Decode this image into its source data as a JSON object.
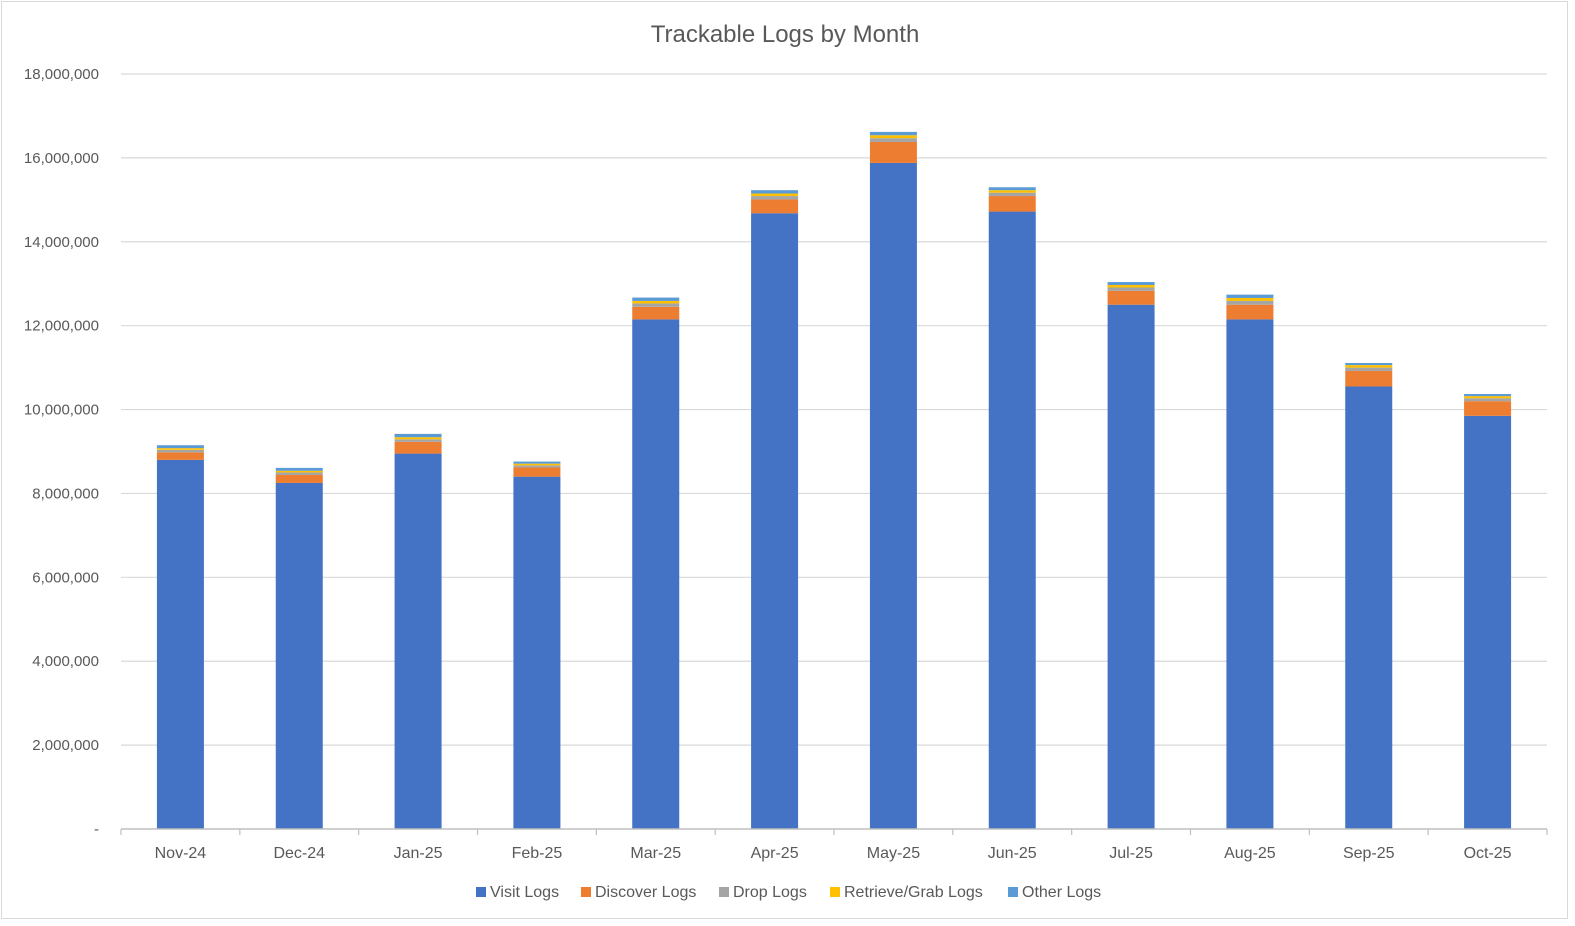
{
  "chart_data": {
    "type": "bar",
    "stacked": true,
    "title": "Trackable Logs by Month",
    "xlabel": "",
    "ylabel": "",
    "ylim": [
      0,
      18000000
    ],
    "yticks": [
      0,
      2000000,
      4000000,
      6000000,
      8000000,
      10000000,
      12000000,
      14000000,
      16000000,
      18000000
    ],
    "ytick_labels": [
      "-",
      "2,000,000",
      "4,000,000",
      "6,000,000",
      "8,000,000",
      "10,000,000",
      "12,000,000",
      "14,000,000",
      "16,000,000",
      "18,000,000"
    ],
    "categories": [
      "Nov-24",
      "Dec-24",
      "Jan-25",
      "Feb-25",
      "Mar-25",
      "Apr-25",
      "May-25",
      "Jun-25",
      "Jul-25",
      "Aug-25",
      "Sep-25",
      "Oct-25"
    ],
    "grid": true,
    "legend_position": "bottom",
    "series": [
      {
        "name": "Visit Logs",
        "color": "#4472c4",
        "values": [
          8800000,
          8250000,
          8950000,
          8400000,
          12150000,
          14680000,
          15880000,
          14720000,
          12500000,
          12150000,
          10550000,
          9850000
        ]
      },
      {
        "name": "Discover Logs",
        "color": "#ed7d31",
        "values": [
          180000,
          190000,
          280000,
          220000,
          300000,
          330000,
          500000,
          370000,
          330000,
          350000,
          370000,
          350000
        ]
      },
      {
        "name": "Drop Logs",
        "color": "#a5a5a5",
        "values": [
          60000,
          60000,
          60000,
          50000,
          80000,
          80000,
          90000,
          80000,
          80000,
          90000,
          80000,
          70000
        ]
      },
      {
        "name": "Retrieve/Grab Logs",
        "color": "#ffc000",
        "values": [
          40000,
          40000,
          50000,
          40000,
          60000,
          60000,
          70000,
          60000,
          60000,
          70000,
          60000,
          50000
        ]
      },
      {
        "name": "Other Logs",
        "color": "#5b9bd5",
        "values": [
          70000,
          70000,
          80000,
          50000,
          80000,
          80000,
          80000,
          70000,
          70000,
          80000,
          50000,
          50000
        ]
      }
    ]
  }
}
